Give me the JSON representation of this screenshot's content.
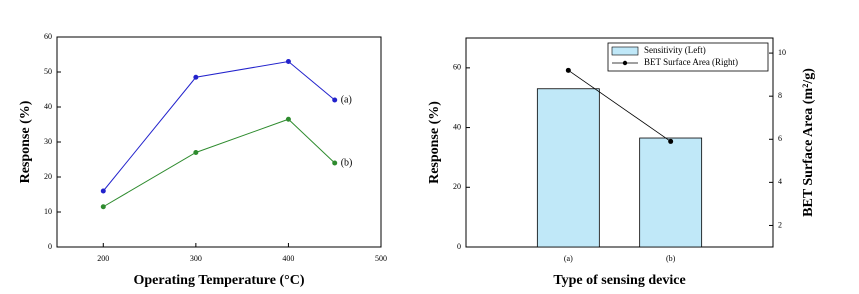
{
  "chart_data": [
    {
      "type": "line",
      "x_label": "Operating Temperature (°C)",
      "y_label": "Response (%)",
      "x": [
        200,
        300,
        400,
        450
      ],
      "series": [
        {
          "name": "(a)",
          "color": "#2222cc",
          "values": [
            16,
            48.5,
            53,
            42
          ]
        },
        {
          "name": "(b)",
          "color": "#2e8b2e",
          "values": [
            11.5,
            27,
            36.5,
            24
          ]
        }
      ],
      "xlim": [
        150,
        500
      ],
      "xticks": [
        200,
        300,
        400,
        500
      ],
      "ylim": [
        0,
        60
      ],
      "yticks": [
        0,
        10,
        20,
        30,
        40,
        50,
        60
      ]
    },
    {
      "type": "bar",
      "x_label": "Type of sensing device",
      "y_label": "Response (%)",
      "y2_label": "BET Surface Area (m²/g)",
      "categories": [
        "(a)",
        "(b)"
      ],
      "series": [
        {
          "name": "Sensitivity (Left)",
          "color": "#c0e8f8",
          "values": [
            53,
            36.5
          ]
        },
        {
          "name": "BET Surface Area (Right)",
          "color": "#000000",
          "values": [
            9.2,
            5.9
          ],
          "axis": "y2"
        }
      ],
      "ylim": [
        0,
        70
      ],
      "yticks": [
        0,
        20,
        40,
        60
      ],
      "y2lim": [
        1,
        10.7
      ],
      "y2ticks": [
        2,
        4,
        6,
        8,
        10
      ],
      "legend": "upper right"
    }
  ]
}
